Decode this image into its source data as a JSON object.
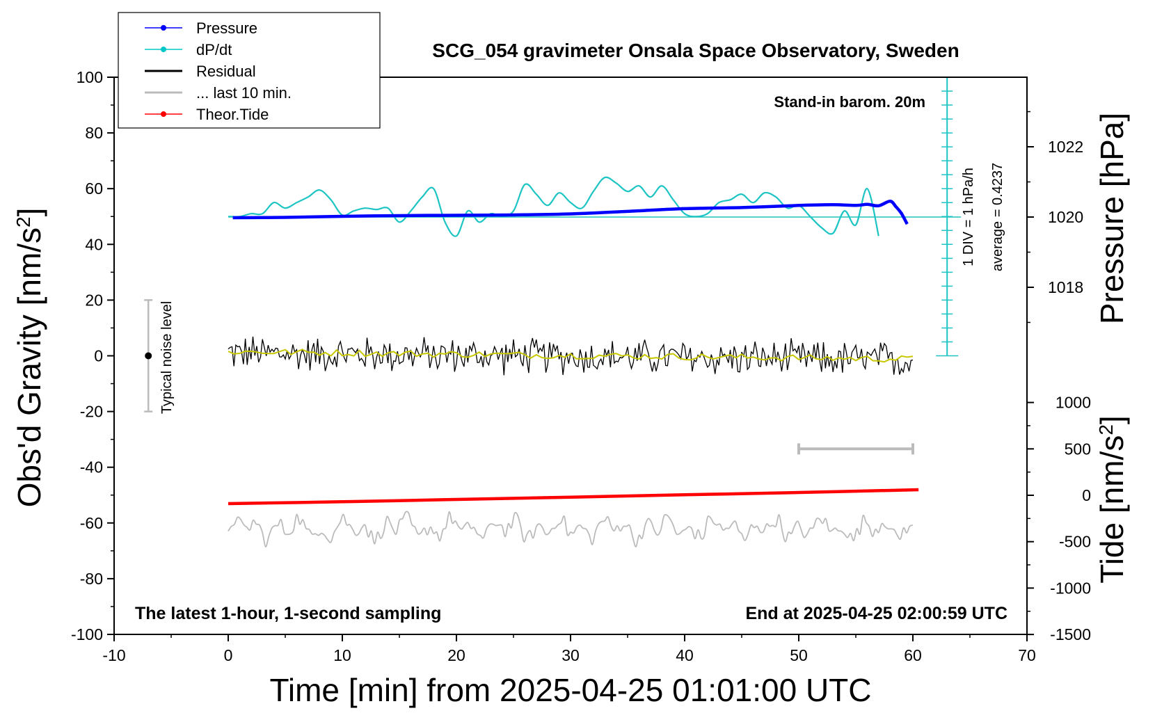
{
  "title": "SCG_054 gravimeter Onsala Space Observatory, Sweden",
  "xlabel": "Time [min] from 2025-04-25 01:01:00 UTC",
  "ylabel_left_main": "Obs'd Gravity [nm/s",
  "ylabel_left_sup": "2",
  "ylabel_left_end": "]",
  "ylabel_right_pressure": "Pressure [hPa]",
  "ylabel_right_tide_main": "Tide [nm/s",
  "ylabel_right_tide_sup": "2",
  "ylabel_right_tide_end": "]",
  "annotations": {
    "stand_in": "Stand-in barom. 20m",
    "div": "1 DIV = 1 hPa/h",
    "average": "average = 0.4237",
    "noise": "Typical noise level",
    "latest": "The latest 1-hour, 1-second sampling",
    "end_at": "End at 2025-04-25 02:00:59 UTC"
  },
  "legend": [
    {
      "label": "Pressure",
      "color": "#0000ff",
      "marker": true
    },
    {
      "label": "dP/dt",
      "color": "#00c8c8",
      "marker": true
    },
    {
      "label": "Residual",
      "color": "#000000",
      "marker": false
    },
    {
      "label": "... last 10 min.",
      "color": "#bbbbbb",
      "marker": false
    },
    {
      "label": "Theor.Tide",
      "color": "#ff0000",
      "marker": true
    }
  ],
  "colors": {
    "pressure": "#0000ff",
    "dpdt": "#1cc4c4",
    "residual": "#000000",
    "residual_smooth": "#c8c800",
    "last10": "#bbbbbb",
    "tide": "#ff0000",
    "noise_bar": "#bbbbbb"
  },
  "chart_data": {
    "type": "line",
    "xlim": [
      -10,
      70
    ],
    "x_ticks": [
      -10,
      0,
      10,
      20,
      30,
      40,
      50,
      60,
      70
    ],
    "ylim_left": [
      -100,
      100
    ],
    "y_ticks_left": [
      -100,
      -80,
      -60,
      -40,
      -20,
      0,
      20,
      40,
      60,
      80,
      100
    ],
    "ylim_pressure": [
      1016,
      1024
    ],
    "y_ticks_pressure": [
      1018,
      1020,
      1022
    ],
    "ylim_tide": [
      -1500,
      1000
    ],
    "y_ticks_tide": [
      -1500,
      -1000,
      -500,
      0,
      500,
      1000
    ],
    "noise_level": {
      "x": -7,
      "center": 0,
      "half_range": 20
    },
    "dpdt_axis": {
      "x": 63,
      "baseline_hpa": 1020,
      "zero_gravity": 0,
      "top_gravity": 100,
      "divisions": 20
    },
    "tide_scale_bar": {
      "x": [
        50,
        60
      ],
      "value": 500
    },
    "series": [
      {
        "name": "Pressure",
        "axis": "pressure",
        "x": [
          0.4,
          5,
          10,
          15,
          20,
          25,
          30,
          35,
          40,
          45,
          50,
          53,
          55,
          56,
          57,
          58,
          58.5,
          59,
          59.5
        ],
        "values": [
          1019.98,
          1019.99,
          1020.02,
          1020.04,
          1020.05,
          1020.06,
          1020.09,
          1020.16,
          1020.24,
          1020.27,
          1020.33,
          1020.35,
          1020.33,
          1020.36,
          1020.32,
          1020.45,
          1020.3,
          1020.1,
          1019.8
        ]
      },
      {
        "name": "dP/dt",
        "axis": "left",
        "x": [
          0,
          1,
          2,
          3,
          4,
          5,
          6,
          7,
          8,
          9,
          10,
          11,
          12,
          13,
          14,
          15,
          16,
          17,
          18,
          19,
          20,
          21,
          22,
          23,
          24,
          25,
          26,
          27,
          28,
          29,
          30,
          31,
          32,
          33,
          34,
          35,
          36,
          37,
          38,
          39,
          40,
          41,
          42,
          43,
          44,
          45,
          46,
          47,
          48,
          49,
          50,
          51,
          52,
          53,
          54,
          55,
          56,
          57
        ],
        "values": [
          50,
          50,
          51,
          51,
          55,
          53,
          55,
          57,
          59.5,
          56,
          50.5,
          52,
          53,
          52.5,
          53,
          48,
          52,
          57,
          60,
          48,
          43,
          52,
          48,
          51,
          50,
          52,
          61.5,
          58,
          54,
          58.5,
          55,
          53,
          59,
          64,
          62,
          59,
          61,
          57,
          61,
          56,
          51,
          50,
          51,
          55,
          56,
          58,
          55,
          58.5,
          57,
          53,
          54,
          50,
          46,
          44,
          52,
          47,
          60,
          43
        ]
      },
      {
        "name": "Residual",
        "axis": "left",
        "x_range": [
          0,
          60
        ],
        "n": 360,
        "amplitude": 5.5,
        "trend": [
          1,
          -1.5
        ]
      },
      {
        "name": "Residual (smoothed)",
        "axis": "left",
        "x_range": [
          0,
          60
        ],
        "n": 120,
        "amplitude": 1.2,
        "trend": [
          1.5,
          -1.2
        ]
      },
      {
        "name": "... last 10 min.",
        "axis": "left",
        "x_range": [
          0,
          60
        ],
        "n": 220,
        "center": -62,
        "amplitude": 4.5
      },
      {
        "name": "Theor.Tide",
        "axis": "tide",
        "x": [
          0,
          10,
          20,
          30,
          40,
          50,
          60.5
        ],
        "values": [
          -90,
          -70,
          -45,
          -20,
          5,
          30,
          60
        ]
      }
    ]
  }
}
